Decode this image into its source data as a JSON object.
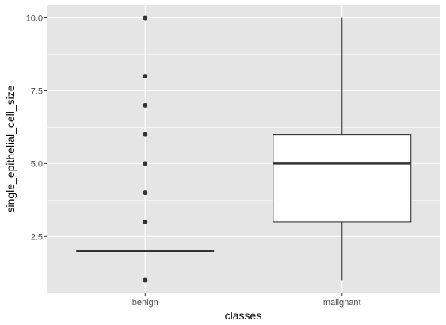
{
  "chart_data": {
    "type": "boxplot",
    "xlabel": "classes",
    "ylabel": "single_epithelial_cell_size",
    "categories": [
      "benign",
      "malignant"
    ],
    "ylim": [
      0.55,
      10.45
    ],
    "yticks": [
      2.5,
      5.0,
      7.5,
      10.0
    ],
    "ytick_labels": [
      "2.5",
      "5.0",
      "7.5",
      "10.0"
    ],
    "grid": true,
    "boxes": [
      {
        "category": "benign",
        "q1": 2,
        "median": 2,
        "q3": 2,
        "whisker_low": 2,
        "whisker_high": 2,
        "outliers": [
          1,
          3,
          4,
          5,
          6,
          7,
          8,
          10
        ]
      },
      {
        "category": "malignant",
        "q1": 3,
        "median": 5,
        "q3": 6,
        "whisker_low": 1,
        "whisker_high": 10,
        "outliers": []
      }
    ],
    "colors": {
      "panel": "#e5e5e5",
      "grid": "#ffffff",
      "box_fill": "#ffffff",
      "line": "#333333",
      "point": "#333333"
    }
  }
}
